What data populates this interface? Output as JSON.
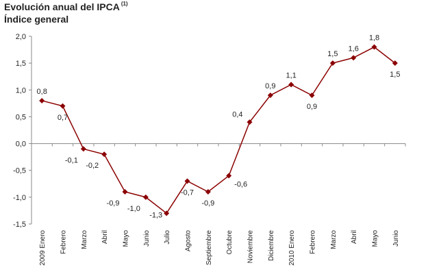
{
  "header": {
    "title": "Evolución anual del IPCA",
    "note_marker": "(1)",
    "subtitle": "Índice general"
  },
  "colors": {
    "series": "#8b0000",
    "axis": "#888888",
    "text": "#222222"
  },
  "chart_data": {
    "type": "line",
    "title": "Evolución anual del IPCA (1)",
    "subtitle": "Índice general",
    "xlabel": "",
    "ylabel": "",
    "ylim": [
      -1.5,
      2.0
    ],
    "yticks": [
      "2,0",
      "1,5",
      "1,0",
      "0,5",
      "0,0",
      "-0,5",
      "-1,0",
      "-1,5"
    ],
    "ytick_values": [
      2.0,
      1.5,
      1.0,
      0.5,
      0.0,
      -0.5,
      -1.0,
      -1.5
    ],
    "grid": false,
    "legend": "none",
    "categories": [
      "2009 Enero",
      "Febrero",
      "Marzo",
      "Abril",
      "Mayo",
      "Junio",
      "Julio",
      "Agosto",
      "Septiembre",
      "Octubre",
      "Noviembre",
      "Diciembre",
      "2010 Enero",
      "Febrero",
      "Marzo",
      "Abril",
      "Mayo",
      "Junio"
    ],
    "series": [
      {
        "values": [
          0.8,
          0.7,
          -0.1,
          -0.2,
          -0.9,
          -1.0,
          -1.3,
          -0.7,
          -0.9,
          -0.6,
          0.4,
          0.9,
          1.1,
          0.9,
          1.5,
          1.6,
          1.8,
          1.5
        ],
        "labels": [
          "0,8",
          "0,7",
          "-0,1",
          "-0,2",
          "-0,9",
          "-1,0",
          "-1,3",
          "-0,7",
          "-0,9",
          "-0,6",
          "0,4",
          "0,9",
          "1,1",
          "0,9",
          "1,5",
          "1,6",
          "1,8",
          "1,5"
        ],
        "label_positions": [
          "above",
          "below",
          "below",
          "below",
          "below",
          "below",
          "below",
          "below",
          "below",
          "right",
          "left",
          "above",
          "above",
          "below",
          "above",
          "above",
          "above",
          "below"
        ]
      }
    ]
  }
}
